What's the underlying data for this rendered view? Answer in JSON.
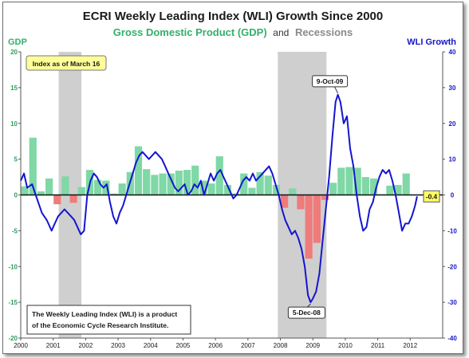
{
  "chart_data": {
    "type": "bar+line",
    "title": "ECRI Weekly Leading Index (WLI) Growth Since 2000",
    "subtitle_gdp": "Gross Domestic Product (GDP)",
    "subtitle_and": "and",
    "subtitle_recessions": "Recessions",
    "left_axis_label": "GDP",
    "right_axis_label": "WLI Growth",
    "left_ylim": [
      -20,
      20
    ],
    "left_ticks": [
      "20",
      "15",
      "10",
      "5",
      "0",
      "-5",
      "-10",
      "-15",
      "-20"
    ],
    "right_ylim": [
      -40,
      40
    ],
    "right_ticks": [
      "40",
      "30",
      "20",
      "10",
      "0",
      "-10",
      "-20",
      "-30",
      "-40"
    ],
    "x_ticks": [
      "2000",
      "2001",
      "2002",
      "2003",
      "2004",
      "2005",
      "2006",
      "2007",
      "2008",
      "2009",
      "2010",
      "2011",
      "2012"
    ],
    "recessions": [
      {
        "start": 2001.17,
        "end": 2001.87
      },
      {
        "start": 2007.92,
        "end": 2009.42
      }
    ],
    "gdp_bars": {
      "name": "GDP",
      "colors": {
        "positive": "#7fd8a6",
        "negative": "#ef7b7b"
      },
      "x": [
        2000.0,
        2000.25,
        2000.5,
        2000.75,
        2001.0,
        2001.25,
        2001.5,
        2001.75,
        2002.0,
        2002.25,
        2002.5,
        2002.75,
        2003.0,
        2003.25,
        2003.5,
        2003.75,
        2004.0,
        2004.25,
        2004.5,
        2004.75,
        2005.0,
        2005.25,
        2005.5,
        2005.75,
        2006.0,
        2006.25,
        2006.5,
        2006.75,
        2007.0,
        2007.25,
        2007.5,
        2007.75,
        2008.0,
        2008.25,
        2008.5,
        2008.75,
        2009.0,
        2009.25,
        2009.5,
        2009.75,
        2010.0,
        2010.25,
        2010.5,
        2010.75,
        2011.0,
        2011.25,
        2011.5,
        2011.75
      ],
      "values": [
        1.2,
        8.0,
        0.5,
        2.3,
        -1.3,
        2.6,
        -1.1,
        1.1,
        3.5,
        2.1,
        2.0,
        0.2,
        1.6,
        3.2,
        6.8,
        3.6,
        2.8,
        3.0,
        3.0,
        3.4,
        3.5,
        4.1,
        2.0,
        1.6,
        5.4,
        1.4,
        0.2,
        3.0,
        1.0,
        3.2,
        2.7,
        1.4,
        -1.8,
        0.9,
        -2.0,
        -8.9,
        -6.7,
        -0.7,
        1.7,
        3.8,
        3.9,
        3.8,
        2.5,
        2.3,
        0.1,
        1.3,
        1.4,
        3.0
      ]
    },
    "wli_series": {
      "name": "WLI Growth",
      "color": "#1515d0",
      "x": [
        2000.0,
        2000.1,
        2000.2,
        2000.35,
        2000.5,
        2000.65,
        2000.8,
        2000.95,
        2001.05,
        2001.15,
        2001.25,
        2001.35,
        2001.45,
        2001.55,
        2001.65,
        2001.75,
        2001.85,
        2001.95,
        2002.05,
        2002.15,
        2002.25,
        2002.35,
        2002.45,
        2002.55,
        2002.65,
        2002.75,
        2002.85,
        2002.95,
        2003.05,
        2003.15,
        2003.25,
        2003.35,
        2003.45,
        2003.55,
        2003.65,
        2003.75,
        2003.85,
        2003.95,
        2004.05,
        2004.15,
        2004.25,
        2004.35,
        2004.45,
        2004.55,
        2004.65,
        2004.75,
        2004.85,
        2004.95,
        2005.05,
        2005.15,
        2005.25,
        2005.35,
        2005.45,
        2005.55,
        2005.65,
        2005.75,
        2005.85,
        2005.95,
        2006.05,
        2006.15,
        2006.25,
        2006.35,
        2006.45,
        2006.55,
        2006.65,
        2006.75,
        2006.85,
        2006.95,
        2007.05,
        2007.15,
        2007.25,
        2007.35,
        2007.45,
        2007.55,
        2007.65,
        2007.75,
        2007.85,
        2007.95,
        2008.05,
        2008.15,
        2008.25,
        2008.35,
        2008.45,
        2008.55,
        2008.65,
        2008.75,
        2008.85,
        2008.93,
        2009.0,
        2009.1,
        2009.2,
        2009.3,
        2009.4,
        2009.5,
        2009.6,
        2009.7,
        2009.77,
        2009.85,
        2009.95,
        2010.05,
        2010.15,
        2010.25,
        2010.35,
        2010.45,
        2010.55,
        2010.65,
        2010.75,
        2010.85,
        2010.95,
        2011.05,
        2011.15,
        2011.25,
        2011.35,
        2011.45,
        2011.55,
        2011.65,
        2011.75,
        2011.85,
        2011.95,
        2012.05,
        2012.15,
        2012.21
      ],
      "values": [
        4.0,
        6.0,
        2.0,
        3.0,
        -1.0,
        -5.0,
        -7.0,
        -10.0,
        -8.0,
        -6.0,
        -5.0,
        -4.0,
        -5.0,
        -6.0,
        -7.0,
        -9.0,
        -11.0,
        -10.0,
        0.0,
        4.0,
        6.0,
        5.0,
        3.0,
        2.0,
        3.0,
        -2.0,
        -6.0,
        -8.0,
        -5.0,
        -3.0,
        0.0,
        3.0,
        6.0,
        9.0,
        11.0,
        12.0,
        11.0,
        10.0,
        11.0,
        12.0,
        11.0,
        10.0,
        8.0,
        6.0,
        4.0,
        2.0,
        1.0,
        2.0,
        3.0,
        0.0,
        1.0,
        3.0,
        2.0,
        4.0,
        0.0,
        3.0,
        6.0,
        4.0,
        6.0,
        7.0,
        5.0,
        3.0,
        1.0,
        -1.0,
        0.0,
        2.0,
        4.0,
        5.0,
        4.0,
        6.0,
        4.0,
        5.0,
        6.0,
        7.0,
        8.0,
        6.0,
        3.0,
        0.0,
        -4.0,
        -7.0,
        -9.0,
        -11.0,
        -10.0,
        -12.0,
        -15.0,
        -20.0,
        -28.0,
        -30.0,
        -29.0,
        -27.0,
        -22.0,
        -13.0,
        -4.0,
        5.0,
        16.0,
        26.0,
        28.0,
        26.0,
        20.0,
        22.0,
        13.0,
        8.0,
        0.0,
        -6.0,
        -10.0,
        -9.0,
        -4.0,
        -2.0,
        2.0,
        5.0,
        7.0,
        6.0,
        7.0,
        4.0,
        0.0,
        -5.0,
        -10.0,
        -8.0,
        -8.0,
        -6.0,
        -3.0,
        -0.4
      ]
    },
    "annotations": [
      {
        "text": "Index as of March 16"
      },
      {
        "text": "9-Oct-09",
        "x": 2009.77,
        "y_right": 28.0
      },
      {
        "text": "5-Dec-08",
        "x": 2008.93,
        "y_right": -30.0
      },
      {
        "text": "-0.4",
        "y_right": -0.4
      }
    ],
    "note_lines": [
      "The Weekly Leading Index (WLI) is a product",
      "of the Economic Cycle Research Institute."
    ],
    "grid": false,
    "zero_line": true
  }
}
